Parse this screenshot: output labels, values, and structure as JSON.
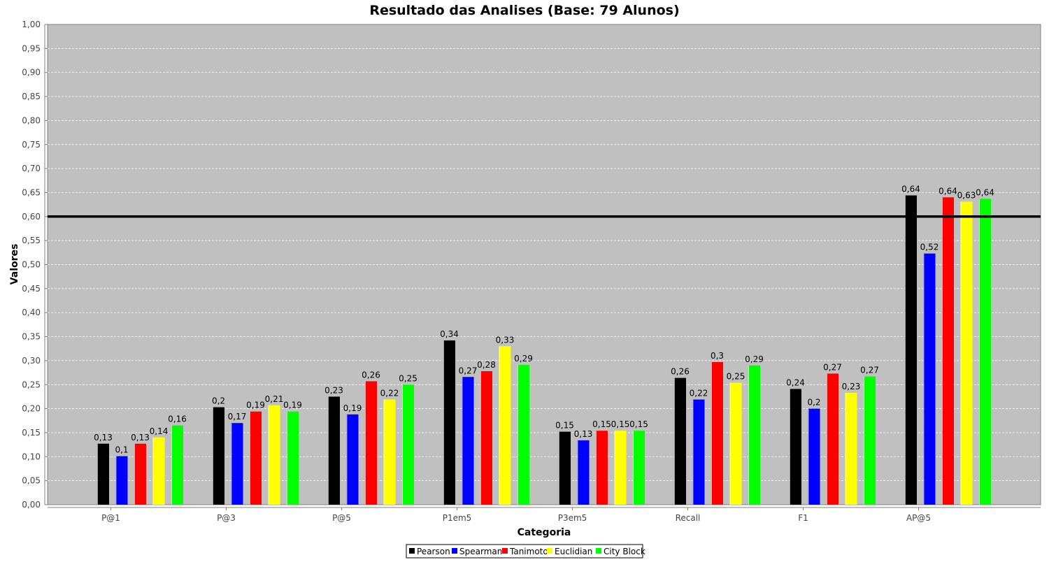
{
  "chart_data": {
    "type": "bar",
    "title": "Resultado das Analises (Base: 79 Alunos)",
    "xlabel": "Categoria",
    "ylabel": "Valores",
    "ylim": [
      0,
      1
    ],
    "y_ticks": [
      "0,00",
      "0,05",
      "0,10",
      "0,15",
      "0,20",
      "0,25",
      "0,30",
      "0,35",
      "0,40",
      "0,45",
      "0,50",
      "0,55",
      "0,60",
      "0,65",
      "0,70",
      "0,75",
      "0,80",
      "0,85",
      "0,90",
      "0,95",
      "1,00"
    ],
    "grid": true,
    "legend_position": "bottom",
    "categories": [
      "P@1",
      "P@3",
      "P@5",
      "P1em5",
      "P3em5",
      "Recall",
      "F1",
      "AP@5"
    ],
    "reference_line": 0.6,
    "series": [
      {
        "name": "Pearson",
        "color": "#000000",
        "values": [
          0.127,
          0.203,
          0.225,
          0.342,
          0.152,
          0.264,
          0.241,
          0.644
        ],
        "labels": [
          "0,13",
          "0,2",
          "0,23",
          "0,34",
          "0,15",
          "0,26",
          "0,24",
          "0,64"
        ]
      },
      {
        "name": "Spearman",
        "color": "#0000ff",
        "values": [
          0.101,
          0.17,
          0.188,
          0.266,
          0.134,
          0.219,
          0.2,
          0.523
        ],
        "labels": [
          "0,1",
          "0,17",
          "0,19",
          "0,27",
          "0,13",
          "0,22",
          "0,2",
          "0,52"
        ]
      },
      {
        "name": "Tanimoto",
        "color": "#ff0000",
        "values": [
          0.127,
          0.194,
          0.257,
          0.278,
          0.154,
          0.297,
          0.273,
          0.64
        ],
        "labels": [
          "0,13",
          "0,19",
          "0,26",
          "0,28",
          "0,15",
          "0,3",
          "0,27",
          "0,64"
        ]
      },
      {
        "name": "Euclidian",
        "color": "#ffff00",
        "values": [
          0.14,
          0.207,
          0.219,
          0.33,
          0.154,
          0.254,
          0.233,
          0.631
        ],
        "labels": [
          "0,14",
          "0,21",
          "0,22",
          "0,33",
          "0,15",
          "0,25",
          "0,23",
          "0,63"
        ]
      },
      {
        "name": "City Block",
        "color": "#00ff00",
        "values": [
          0.165,
          0.194,
          0.25,
          0.291,
          0.154,
          0.29,
          0.267,
          0.637
        ],
        "labels": [
          "0,16",
          "0,19",
          "0,25",
          "0,29",
          "0,15",
          "0,29",
          "0,27",
          "0,64"
        ]
      }
    ]
  }
}
